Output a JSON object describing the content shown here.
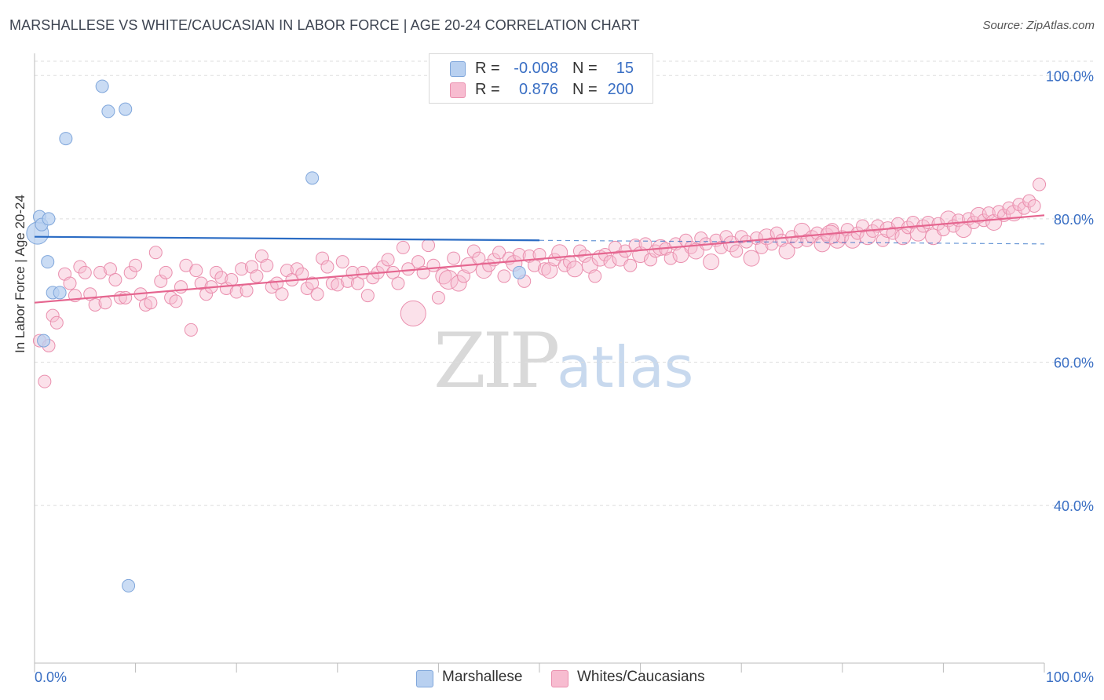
{
  "title": "MARSHALLESE VS WHITE/CAUCASIAN IN LABOR FORCE | AGE 20-24 CORRELATION CHART",
  "source": "Source: ZipAtlas.com",
  "watermark": {
    "zip": "ZIP",
    "atlas": "atlas"
  },
  "colors": {
    "blue_fill": "#b8d0f0",
    "blue_stroke": "#7fa6db",
    "blue_line": "#2b6cc4",
    "pink_fill": "#f7bcd0",
    "pink_stroke": "#ea8fae",
    "pink_line": "#e5658f",
    "tick_text": "#3a6fc4"
  },
  "legend": {
    "rows": [
      {
        "r_label": "R =",
        "r_value": "-0.008",
        "n_label": "N =",
        "n_value": "15"
      },
      {
        "r_label": "R =",
        "r_value": "0.876",
        "n_label": "N =",
        "n_value": "200"
      }
    ]
  },
  "bottom_legend": [
    "Marshallese",
    "Whites/Caucasians"
  ],
  "chart_data": {
    "type": "scatter",
    "title": "MARSHALLESE VS WHITE/CAUCASIAN IN LABOR FORCE | AGE 20-24 CORRELATION CHART",
    "xlabel": "",
    "ylabel": "In Labor Force | Age 20-24",
    "xlim": [
      0,
      100
    ],
    "ylim": [
      18,
      102
    ],
    "x_tick_labels": [
      "0.0%",
      "100.0%"
    ],
    "y_ticks": [
      40,
      60,
      80,
      100
    ],
    "y_tick_labels": [
      "40.0%",
      "60.0%",
      "80.0%",
      "100.0%"
    ],
    "grid": true,
    "series": [
      {
        "name": "Marshallese",
        "trend": {
          "x0": 0,
          "y0": 77.5,
          "x1": 50,
          "y1": 77.0,
          "dashed_to_x": 100,
          "dashed_y1": 76.5
        },
        "points": [
          [
            0.3,
            78.0,
            14
          ],
          [
            0.5,
            80.3,
            8
          ],
          [
            0.7,
            79.2,
            8
          ],
          [
            1.4,
            80.0,
            8
          ],
          [
            1.3,
            74.0,
            8
          ],
          [
            1.8,
            69.7,
            8
          ],
          [
            2.5,
            69.7,
            8
          ],
          [
            0.9,
            63.0,
            8
          ],
          [
            3.1,
            91.2,
            8
          ],
          [
            6.7,
            98.5,
            8
          ],
          [
            7.3,
            95.0,
            8
          ],
          [
            9.0,
            95.3,
            8
          ],
          [
            27.5,
            85.7,
            8
          ],
          [
            48.0,
            72.5,
            8
          ],
          [
            9.3,
            28.8,
            8
          ]
        ]
      },
      {
        "name": "Whites/Caucasians",
        "trend": {
          "x0": 0,
          "y0": 68.3,
          "x1": 100,
          "y1": 80.5
        },
        "points": [
          [
            0.5,
            63.0,
            8
          ],
          [
            1.4,
            62.3,
            8
          ],
          [
            1.0,
            57.3,
            8
          ],
          [
            1.8,
            66.5,
            8
          ],
          [
            2.2,
            65.5,
            8
          ],
          [
            3.0,
            72.3,
            8
          ],
          [
            3.5,
            71.0,
            8
          ],
          [
            4.0,
            69.3,
            8
          ],
          [
            4.5,
            73.3,
            8
          ],
          [
            5.0,
            72.5,
            8
          ],
          [
            5.5,
            69.5,
            8
          ],
          [
            6.0,
            68.0,
            8
          ],
          [
            6.5,
            72.5,
            8
          ],
          [
            7.0,
            68.3,
            8
          ],
          [
            7.5,
            73.0,
            8
          ],
          [
            8.0,
            71.5,
            8
          ],
          [
            8.5,
            69.0,
            8
          ],
          [
            9.0,
            69.0,
            8
          ],
          [
            9.5,
            72.5,
            8
          ],
          [
            10.0,
            73.5,
            8
          ],
          [
            10.5,
            69.5,
            8
          ],
          [
            11.0,
            68.0,
            8
          ],
          [
            11.5,
            68.3,
            8
          ],
          [
            12.0,
            75.3,
            8
          ],
          [
            12.5,
            71.3,
            8
          ],
          [
            13.0,
            72.5,
            8
          ],
          [
            13.5,
            69.0,
            8
          ],
          [
            14.0,
            68.5,
            8
          ],
          [
            14.5,
            70.5,
            8
          ],
          [
            15.0,
            73.5,
            8
          ],
          [
            15.5,
            64.5,
            8
          ],
          [
            16.0,
            72.8,
            8
          ],
          [
            16.5,
            71.0,
            8
          ],
          [
            17.0,
            69.5,
            8
          ],
          [
            17.5,
            70.5,
            8
          ],
          [
            18.0,
            72.5,
            8
          ],
          [
            18.5,
            71.8,
            8
          ],
          [
            19.0,
            70.3,
            8
          ],
          [
            19.5,
            71.5,
            8
          ],
          [
            20.0,
            69.8,
            8
          ],
          [
            20.5,
            73.0,
            8
          ],
          [
            21.0,
            70.0,
            8
          ],
          [
            21.5,
            73.3,
            8
          ],
          [
            22.0,
            72.0,
            8
          ],
          [
            22.5,
            74.8,
            8
          ],
          [
            23.0,
            73.5,
            8
          ],
          [
            23.5,
            70.5,
            8
          ],
          [
            24.0,
            71.0,
            8
          ],
          [
            24.5,
            69.5,
            8
          ],
          [
            25.0,
            72.8,
            8
          ],
          [
            25.5,
            71.5,
            8
          ],
          [
            26.0,
            73.0,
            8
          ],
          [
            26.5,
            72.3,
            8
          ],
          [
            27.0,
            70.3,
            8
          ],
          [
            27.5,
            71.0,
            8
          ],
          [
            28.0,
            69.5,
            8
          ],
          [
            28.5,
            74.5,
            8
          ],
          [
            29.0,
            73.3,
            8
          ],
          [
            29.5,
            71.0,
            8
          ],
          [
            30.0,
            70.8,
            8
          ],
          [
            30.5,
            74.0,
            8
          ],
          [
            31.0,
            71.3,
            8
          ],
          [
            31.5,
            72.5,
            8
          ],
          [
            32.0,
            71.0,
            8
          ],
          [
            32.5,
            72.5,
            8
          ],
          [
            33.0,
            69.3,
            8
          ],
          [
            33.5,
            71.8,
            8
          ],
          [
            34.0,
            72.5,
            8
          ],
          [
            34.5,
            73.3,
            8
          ],
          [
            35.0,
            74.3,
            8
          ],
          [
            35.5,
            72.5,
            8
          ],
          [
            36.0,
            71.0,
            8
          ],
          [
            36.5,
            76.0,
            8
          ],
          [
            37.0,
            73.0,
            8
          ],
          [
            37.5,
            66.8,
            16
          ],
          [
            38.0,
            74.0,
            8
          ],
          [
            38.5,
            72.5,
            8
          ],
          [
            39.0,
            76.3,
            8
          ],
          [
            39.5,
            73.5,
            8
          ],
          [
            40.0,
            69.0,
            8
          ],
          [
            40.5,
            72.0,
            10
          ],
          [
            41.0,
            71.5,
            12
          ],
          [
            41.5,
            74.5,
            8
          ],
          [
            42.0,
            71.0,
            10
          ],
          [
            42.5,
            72.0,
            8
          ],
          [
            43.0,
            73.5,
            10
          ],
          [
            43.5,
            75.5,
            8
          ],
          [
            44.0,
            74.5,
            8
          ],
          [
            44.5,
            72.8,
            10
          ],
          [
            45.0,
            73.5,
            8
          ],
          [
            45.5,
            74.3,
            8
          ],
          [
            46.0,
            75.3,
            8
          ],
          [
            46.5,
            72.0,
            8
          ],
          [
            47.0,
            74.5,
            8
          ],
          [
            47.5,
            73.8,
            10
          ],
          [
            48.0,
            75.0,
            8
          ],
          [
            48.5,
            71.3,
            8
          ],
          [
            49.0,
            74.8,
            8
          ],
          [
            49.5,
            73.5,
            8
          ],
          [
            50.0,
            75.0,
            8
          ],
          [
            50.5,
            73.0,
            8
          ],
          [
            51.0,
            72.8,
            10
          ],
          [
            51.5,
            74.3,
            8
          ],
          [
            52.0,
            75.3,
            10
          ],
          [
            52.5,
            73.5,
            8
          ],
          [
            53.0,
            74.0,
            8
          ],
          [
            53.5,
            73.0,
            10
          ],
          [
            54.0,
            75.5,
            8
          ],
          [
            54.5,
            74.8,
            8
          ],
          [
            55.0,
            73.5,
            10
          ],
          [
            55.5,
            72.0,
            8
          ],
          [
            56.0,
            74.5,
            10
          ],
          [
            56.5,
            75.0,
            8
          ],
          [
            57.0,
            74.0,
            8
          ],
          [
            57.5,
            76.0,
            8
          ],
          [
            58.0,
            74.5,
            10
          ],
          [
            58.5,
            75.5,
            8
          ],
          [
            59.0,
            73.5,
            8
          ],
          [
            59.5,
            76.3,
            8
          ],
          [
            60.0,
            75.0,
            10
          ],
          [
            60.5,
            76.5,
            8
          ],
          [
            61.0,
            74.3,
            8
          ],
          [
            61.5,
            75.5,
            8
          ],
          [
            62.0,
            76.0,
            10
          ],
          [
            62.5,
            75.8,
            8
          ],
          [
            63.0,
            74.5,
            8
          ],
          [
            63.5,
            76.5,
            8
          ],
          [
            64.0,
            75.0,
            10
          ],
          [
            64.5,
            77.0,
            8
          ],
          [
            65.0,
            76.0,
            8
          ],
          [
            65.5,
            75.5,
            10
          ],
          [
            66.0,
            77.3,
            8
          ],
          [
            66.5,
            76.5,
            8
          ],
          [
            67.0,
            74.0,
            10
          ],
          [
            67.5,
            77.0,
            8
          ],
          [
            68.0,
            76.0,
            8
          ],
          [
            68.5,
            77.5,
            8
          ],
          [
            69.0,
            76.5,
            10
          ],
          [
            69.5,
            75.5,
            8
          ],
          [
            70.0,
            77.5,
            8
          ],
          [
            70.5,
            76.8,
            8
          ],
          [
            71.0,
            74.5,
            10
          ],
          [
            71.5,
            77.3,
            8
          ],
          [
            72.0,
            76.0,
            8
          ],
          [
            72.5,
            77.5,
            10
          ],
          [
            73.0,
            76.5,
            8
          ],
          [
            73.5,
            78.0,
            8
          ],
          [
            74.0,
            77.0,
            8
          ],
          [
            74.5,
            75.5,
            10
          ],
          [
            75.0,
            77.5,
            8
          ],
          [
            75.5,
            76.8,
            8
          ],
          [
            76.0,
            78.3,
            10
          ],
          [
            76.5,
            77.0,
            8
          ],
          [
            77.0,
            77.5,
            8
          ],
          [
            77.5,
            78.0,
            8
          ],
          [
            78.0,
            76.5,
            10
          ],
          [
            78.5,
            77.8,
            8
          ],
          [
            79.0,
            78.5,
            8
          ],
          [
            79.5,
            77.0,
            10
          ],
          [
            80.0,
            77.5,
            8
          ],
          [
            80.5,
            78.5,
            8
          ],
          [
            81.0,
            77.0,
            10
          ],
          [
            81.5,
            78.0,
            8
          ],
          [
            82.0,
            79.0,
            8
          ],
          [
            82.5,
            77.5,
            10
          ],
          [
            83.0,
            78.3,
            8
          ],
          [
            83.5,
            79.0,
            8
          ],
          [
            84.0,
            77.0,
            8
          ],
          [
            84.5,
            78.5,
            10
          ],
          [
            85.0,
            78.0,
            8
          ],
          [
            85.5,
            79.3,
            8
          ],
          [
            86.0,
            77.5,
            10
          ],
          [
            86.5,
            78.8,
            8
          ],
          [
            87.0,
            79.5,
            8
          ],
          [
            87.5,
            78.0,
            10
          ],
          [
            88.0,
            79.0,
            8
          ],
          [
            88.5,
            79.5,
            8
          ],
          [
            89.0,
            77.5,
            10
          ],
          [
            89.5,
            79.3,
            8
          ],
          [
            90.0,
            78.5,
            8
          ],
          [
            90.5,
            80.0,
            10
          ],
          [
            91.0,
            79.0,
            8
          ],
          [
            91.5,
            79.8,
            8
          ],
          [
            92.0,
            78.5,
            10
          ],
          [
            92.5,
            80.0,
            8
          ],
          [
            93.0,
            79.5,
            8
          ],
          [
            93.5,
            80.5,
            10
          ],
          [
            94.0,
            79.8,
            8
          ],
          [
            94.5,
            80.8,
            8
          ],
          [
            95.0,
            79.5,
            10
          ],
          [
            95.5,
            81.0,
            8
          ],
          [
            96.0,
            80.5,
            8
          ],
          [
            96.5,
            81.5,
            8
          ],
          [
            97.0,
            80.8,
            10
          ],
          [
            97.5,
            82.0,
            8
          ],
          [
            98.0,
            81.5,
            8
          ],
          [
            98.5,
            82.5,
            8
          ],
          [
            99.0,
            81.8,
            8
          ],
          [
            99.5,
            84.8,
            8
          ],
          [
            78.8,
            77.8,
            12
          ]
        ]
      }
    ]
  }
}
